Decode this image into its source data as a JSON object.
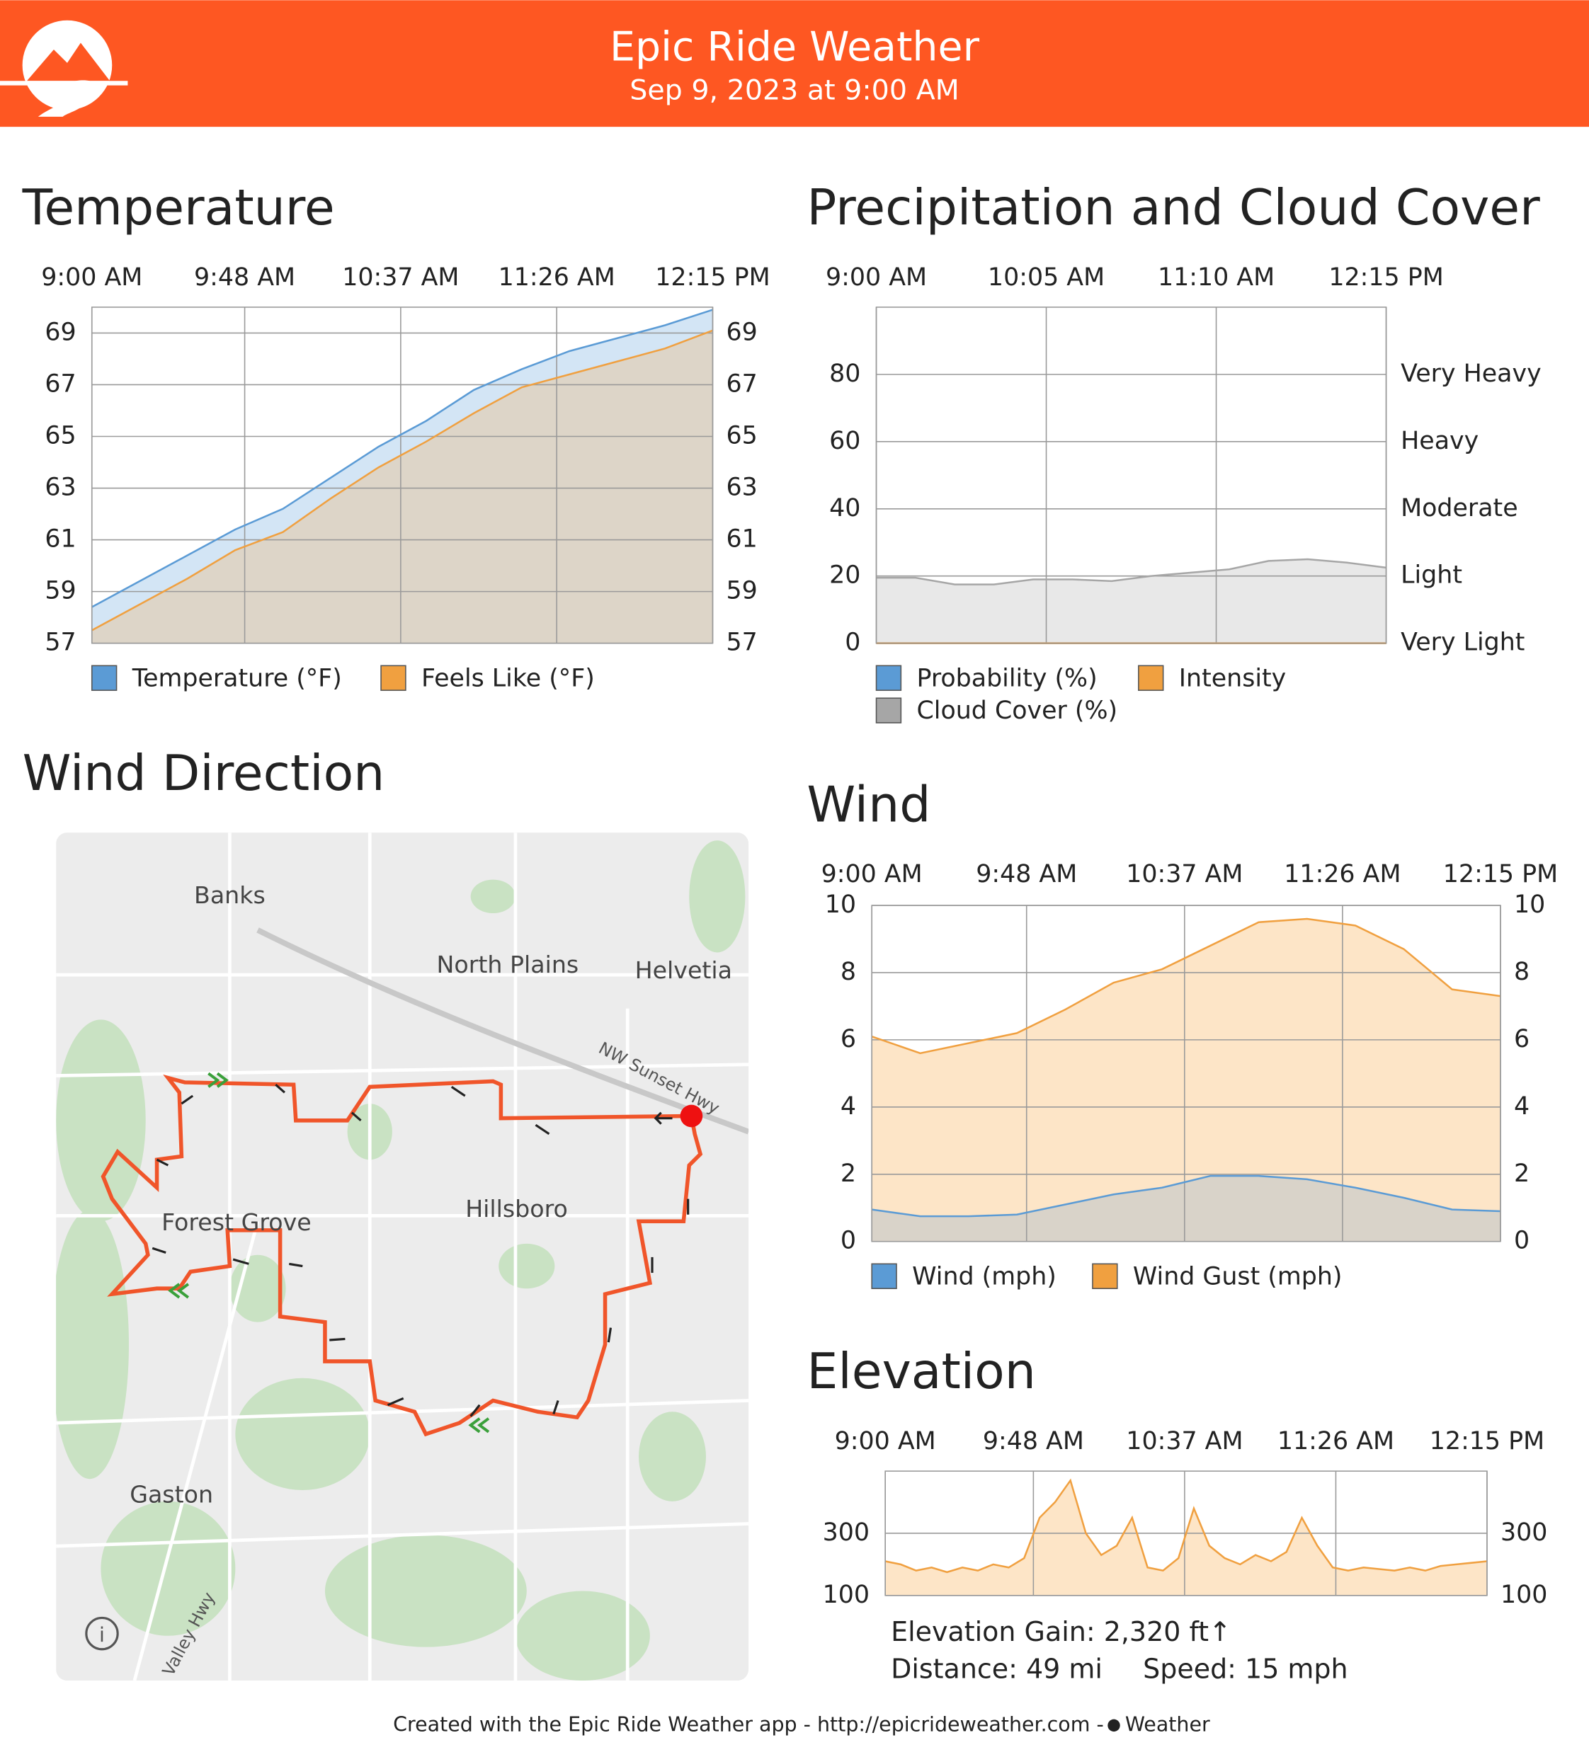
{
  "header": {
    "title": "Epic Ride Weather",
    "subtitle": "Sep 9, 2023 at 9:00 AM"
  },
  "chart_data": [
    {
      "type": "area",
      "title": "Temperature",
      "x": [
        "9:00 AM",
        "9:15 AM",
        "9:30 AM",
        "9:45 AM",
        "10:00 AM",
        "10:15 AM",
        "10:30 AM",
        "10:45 AM",
        "11:00 AM",
        "11:15 AM",
        "11:30 AM",
        "11:45 AM",
        "12:00 PM",
        "12:15 PM"
      ],
      "xlim": [
        "9:00 AM",
        "12:15 PM"
      ],
      "xticks": [
        "9:00 AM",
        "9:48 AM",
        "10:37 AM",
        "11:26 AM",
        "12:15 PM"
      ],
      "ylim": [
        57,
        70
      ],
      "yticks": [
        57,
        59,
        61,
        63,
        65,
        67,
        69
      ],
      "mirror_yticks": true,
      "grid": true,
      "series": [
        {
          "name": "Temperature (°F)",
          "color": "#5b9bd5",
          "fill": "#d3e5f5",
          "values": [
            58.4,
            59.4,
            60.4,
            61.4,
            62.2,
            63.4,
            64.6,
            65.6,
            66.8,
            67.6,
            68.3,
            68.8,
            69.3,
            69.9
          ]
        },
        {
          "name": "Feels Like (°F)",
          "color": "#f0a040",
          "fill": "#ddd5c8",
          "values": [
            57.5,
            58.5,
            59.5,
            60.6,
            61.3,
            62.6,
            63.8,
            64.8,
            65.9,
            66.9,
            67.4,
            67.9,
            68.4,
            69.1
          ]
        }
      ]
    },
    {
      "type": "area",
      "title": "Precipitation and Cloud Cover",
      "x": [
        "9:00 AM",
        "9:15 AM",
        "9:30 AM",
        "9:45 AM",
        "10:00 AM",
        "10:15 AM",
        "10:30 AM",
        "10:45 AM",
        "11:00 AM",
        "11:15 AM",
        "11:30 AM",
        "11:45 AM",
        "12:00 PM",
        "12:15 PM"
      ],
      "xlim": [
        "9:00 AM",
        "12:15 PM"
      ],
      "xticks": [
        "9:00 AM",
        "10:05 AM",
        "11:10 AM",
        "12:15 PM"
      ],
      "ylim": [
        0,
        100
      ],
      "yticks": [
        0,
        20,
        40,
        60,
        80
      ],
      "y2lim": [
        0,
        100
      ],
      "y2ticks": [
        {
          "value": 0,
          "label": "Very Light"
        },
        {
          "value": 20,
          "label": "Light"
        },
        {
          "value": 40,
          "label": "Moderate"
        },
        {
          "value": 60,
          "label": "Heavy"
        },
        {
          "value": 80,
          "label": "Very Heavy"
        }
      ],
      "grid": true,
      "series": [
        {
          "name": "Probability (%)",
          "color": "#5b9bd5",
          "fill": "#d3e5f5",
          "values": [
            0,
            0,
            0,
            0,
            0,
            0,
            0,
            0,
            0,
            0,
            0,
            0,
            0,
            0
          ]
        },
        {
          "name": "Intensity",
          "color": "#f0a040",
          "fill": "#fde5c7",
          "axis": "y2",
          "values": [
            0,
            0,
            0,
            0,
            0,
            0,
            0,
            0,
            0,
            0,
            0,
            0,
            0,
            0
          ]
        },
        {
          "name": "Cloud Cover (%)",
          "color": "#a6a6a6",
          "fill": "#e8e8e8",
          "values": [
            19.5,
            19.5,
            17.5,
            17.5,
            19,
            19,
            18.5,
            20,
            21,
            22,
            24.5,
            25,
            24,
            22.5
          ]
        }
      ]
    },
    {
      "type": "area",
      "title": "Wind",
      "x": [
        "9:00 AM",
        "9:15 AM",
        "9:30 AM",
        "9:45 AM",
        "10:00 AM",
        "10:15 AM",
        "10:30 AM",
        "10:45 AM",
        "11:00 AM",
        "11:15 AM",
        "11:30 AM",
        "11:45 AM",
        "12:00 PM",
        "12:15 PM"
      ],
      "xlim": [
        "9:00 AM",
        "12:15 PM"
      ],
      "xticks": [
        "9:00 AM",
        "9:48 AM",
        "10:37 AM",
        "11:26 AM",
        "12:15 PM"
      ],
      "ylim": [
        0,
        10
      ],
      "yticks": [
        0,
        2,
        4,
        6,
        8,
        10
      ],
      "mirror_yticks": true,
      "grid": true,
      "series": [
        {
          "name": "Wind Gust (mph)",
          "color": "#f0a040",
          "fill": "#fde5c7",
          "values": [
            6.1,
            5.6,
            5.9,
            6.2,
            6.9,
            7.7,
            8.1,
            8.8,
            9.5,
            9.6,
            9.4,
            8.7,
            7.5,
            7.3
          ]
        },
        {
          "name": "Wind (mph)",
          "color": "#5b9bd5",
          "fill": "#d9d3c9",
          "values": [
            0.95,
            0.75,
            0.75,
            0.8,
            1.1,
            1.4,
            1.6,
            1.95,
            1.95,
            1.85,
            1.6,
            1.3,
            0.95,
            0.9
          ]
        }
      ]
    },
    {
      "type": "area",
      "title": "Elevation",
      "x": [
        "9:00 AM",
        "9:05 AM",
        "9:10 AM",
        "9:15 AM",
        "9:20 AM",
        "9:25 AM",
        "9:30 AM",
        "9:35 AM",
        "9:40 AM",
        "9:45 AM",
        "9:50 AM",
        "9:55 AM",
        "10:00 AM",
        "10:05 AM",
        "10:10 AM",
        "10:15 AM",
        "10:20 AM",
        "10:25 AM",
        "10:30 AM",
        "10:35 AM",
        "10:40 AM",
        "10:45 AM",
        "10:50 AM",
        "10:55 AM",
        "11:00 AM",
        "11:05 AM",
        "11:10 AM",
        "11:15 AM",
        "11:20 AM",
        "11:25 AM",
        "11:30 AM",
        "11:35 AM",
        "11:40 AM",
        "11:45 AM",
        "11:50 AM",
        "11:55 AM",
        "12:00 PM",
        "12:05 PM",
        "12:10 PM",
        "12:15 PM"
      ],
      "xlim": [
        "9:00 AM",
        "12:15 PM"
      ],
      "xticks": [
        "9:00 AM",
        "9:48 AM",
        "10:37 AM",
        "11:26 AM",
        "12:15 PM"
      ],
      "ylim": [
        100,
        500
      ],
      "yticks": [
        100,
        300
      ],
      "mirror_yticks": true,
      "grid": true,
      "series": [
        {
          "color": "#f0a040",
          "fill": "#fde5c7",
          "values": [
            210,
            200,
            180,
            190,
            175,
            190,
            180,
            200,
            190,
            220,
            350,
            400,
            470,
            300,
            230,
            260,
            350,
            190,
            180,
            220,
            380,
            260,
            220,
            200,
            230,
            210,
            240,
            350,
            260,
            190,
            180,
            190,
            185,
            180,
            190,
            180,
            195,
            200,
            205,
            210
          ]
        }
      ]
    }
  ],
  "map": {
    "title": "Wind Direction",
    "labels": [
      "Banks",
      "North Plains",
      "Helvetia",
      "NW Sunset Hwy",
      "Forest Grove",
      "Hillsboro",
      "Gaston",
      "Valley Hwy"
    ]
  },
  "elevation_stats": {
    "gain": "Elevation Gain: 2,320 ft↑",
    "distance": "Distance: 49 mi",
    "speed": "Speed: 15 mph"
  },
  "footer": {
    "text": "Created with the Epic Ride Weather app - http://epicrideweather.com -",
    "brand": "Weather"
  }
}
